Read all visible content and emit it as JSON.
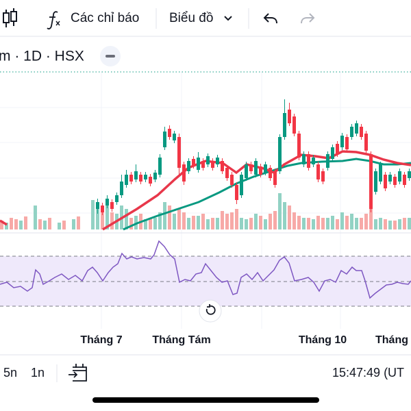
{
  "toolbar": {
    "indicators": "Các chỉ báo",
    "chart_type": "Biểu đồ"
  },
  "legend": {
    "symbol": "m · 1D · HSX"
  },
  "x_axis": {
    "labels": [
      "Tháng 7",
      "Tháng Tám",
      "Tháng 10",
      "Tháng"
    ]
  },
  "bottom_bar": {
    "ranges": [
      "5n",
      "1n"
    ],
    "clock": "15:47:49 (UT"
  }
}
